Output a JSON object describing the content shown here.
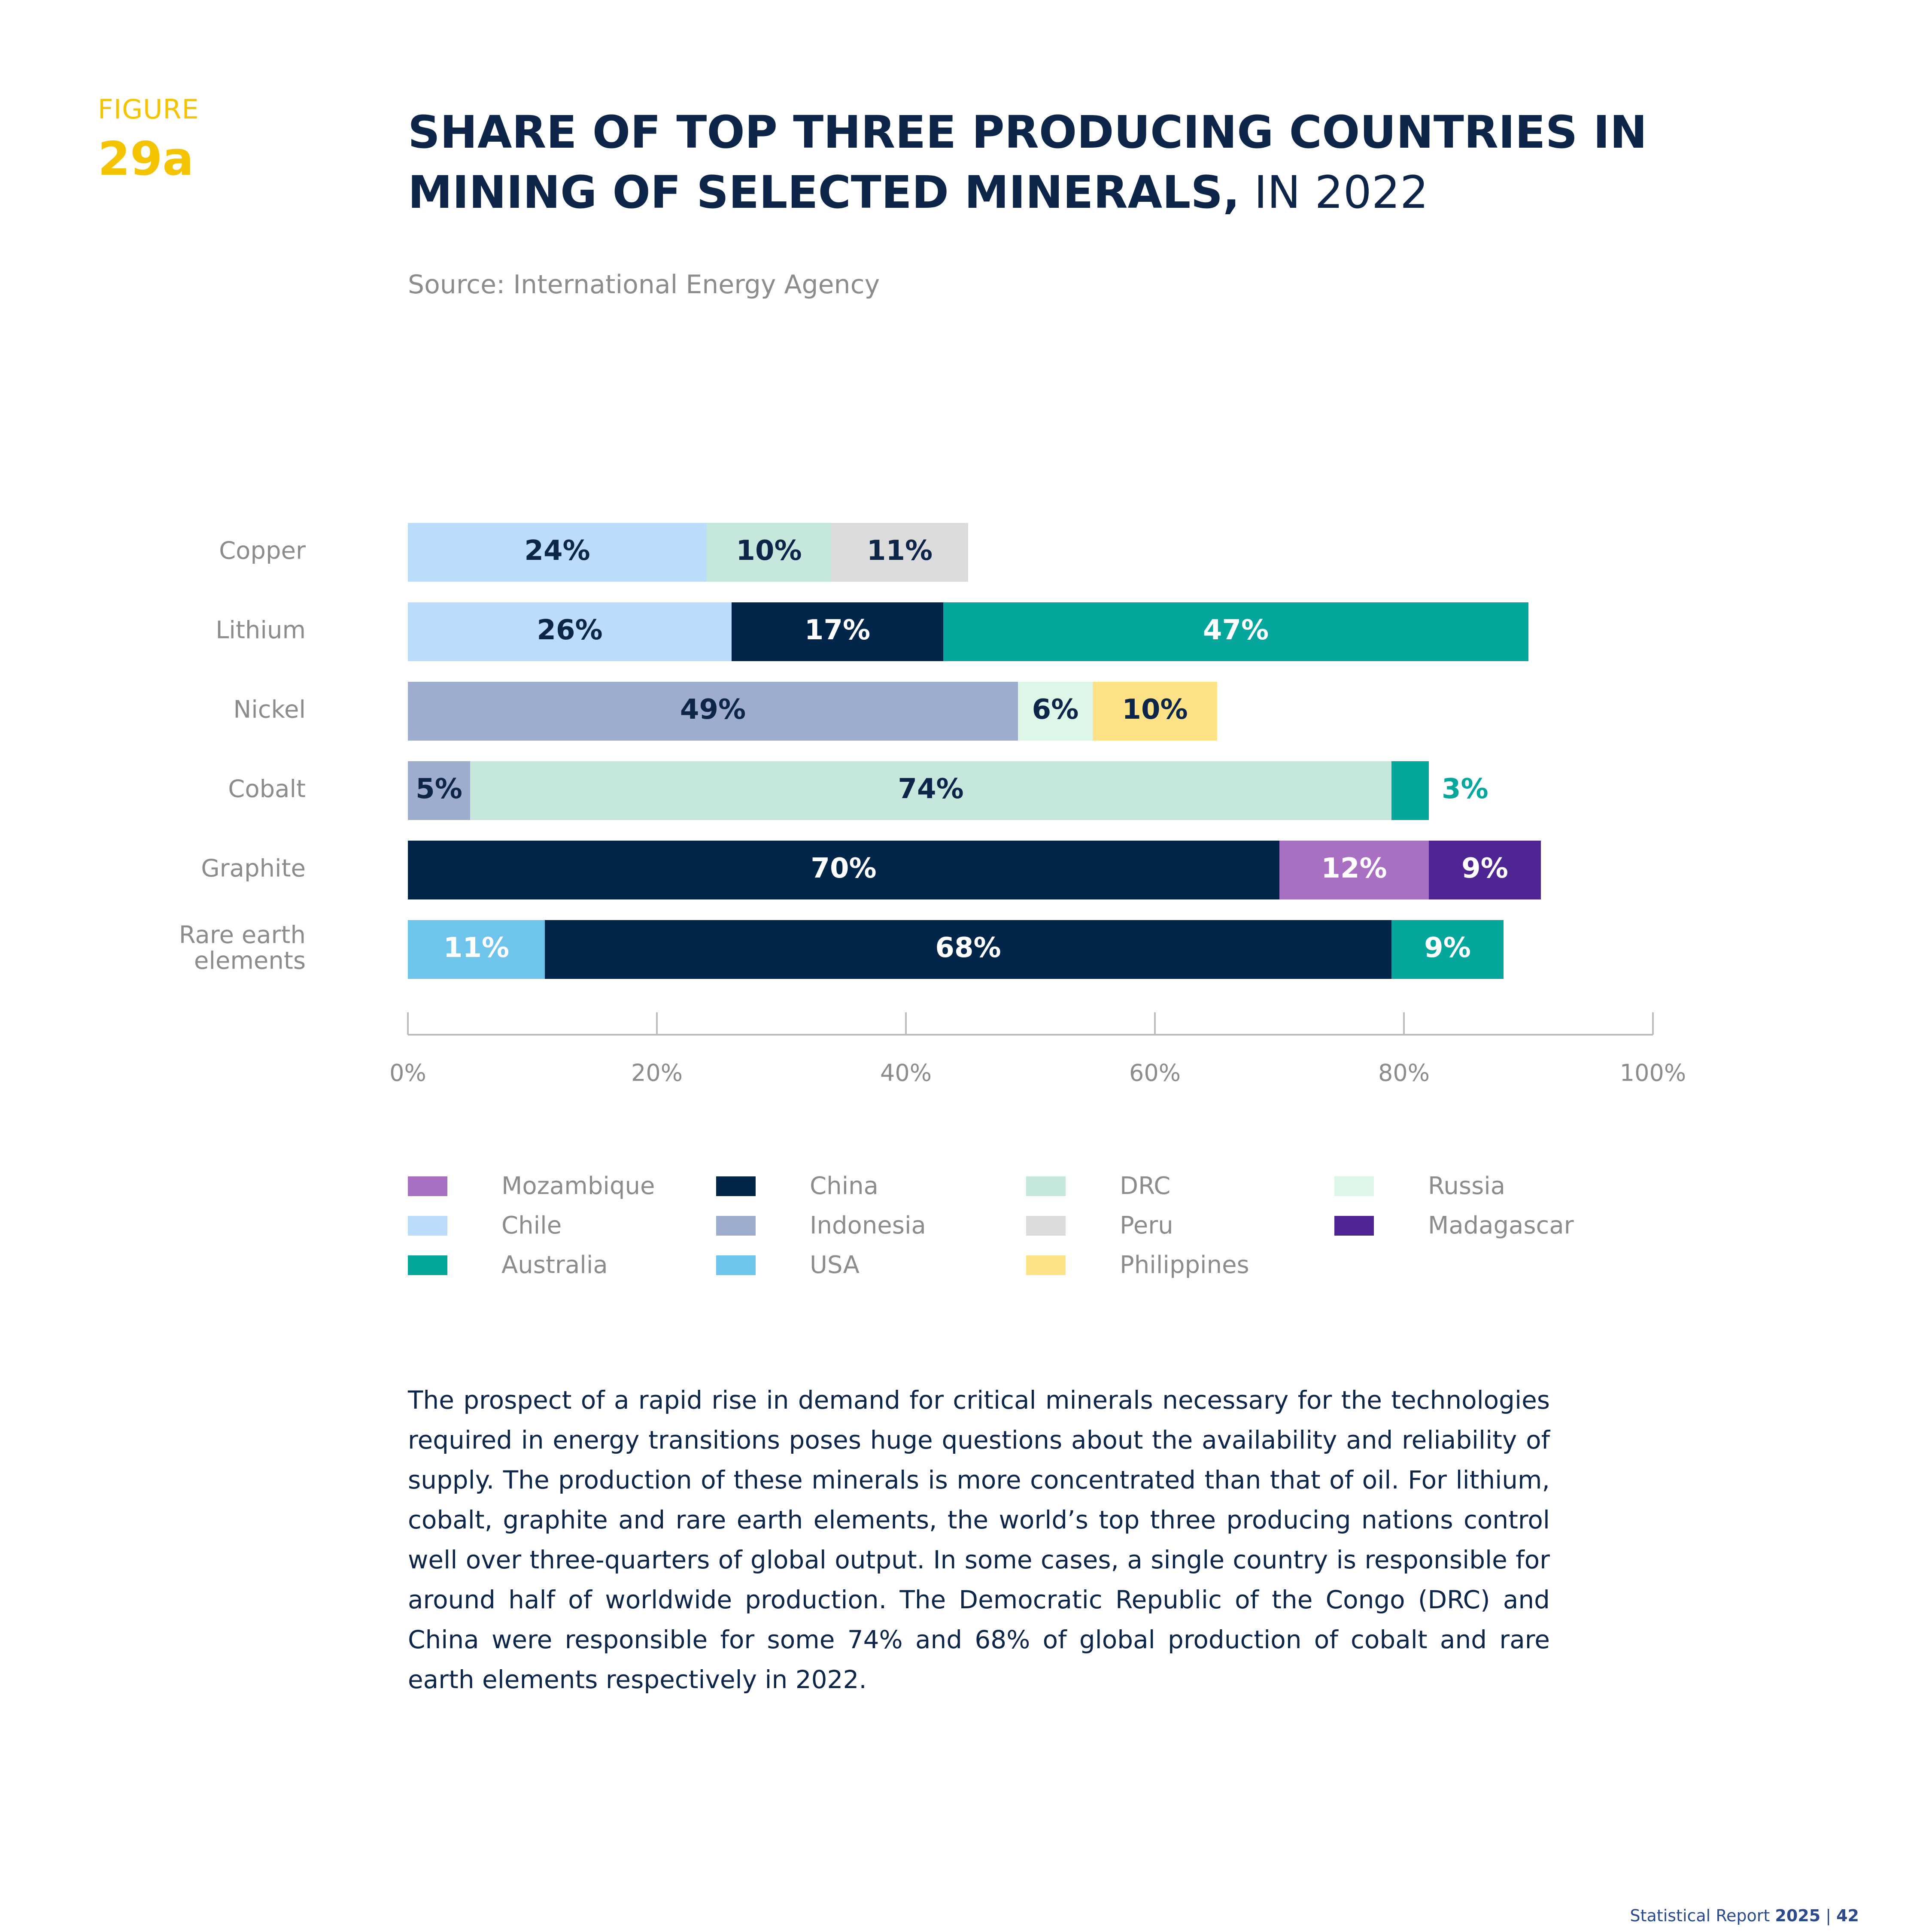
{
  "header": {
    "figure_label": "FIGURE",
    "figure_number": "29a",
    "title_bold": "SHARE OF TOP THREE PRODUCING COUNTRIES IN MINING OF SELECTED MINERALS,",
    "title_light": " IN 2022",
    "source": "Source: International Energy Agency"
  },
  "chart_data": {
    "type": "bar",
    "orientation": "horizontal",
    "stacked": true,
    "categories": [
      "Copper",
      "Lithium",
      "Nickel",
      "Cobalt",
      "Graphite",
      "Rare earth elements"
    ],
    "category_lines": [
      [
        "Copper"
      ],
      [
        "Lithium"
      ],
      [
        "Nickel"
      ],
      [
        "Cobalt"
      ],
      [
        "Graphite"
      ],
      [
        "Rare earth",
        "elements"
      ]
    ],
    "stacks": [
      [
        {
          "country": "Chile",
          "value": 24,
          "label": "24%"
        },
        {
          "country": "DRC",
          "value": 10,
          "label": "10%"
        },
        {
          "country": "Peru",
          "value": 11,
          "label": "11%"
        }
      ],
      [
        {
          "country": "Chile",
          "value": 26,
          "label": "26%"
        },
        {
          "country": "China",
          "value": 17,
          "label": "17%"
        },
        {
          "country": "Australia",
          "value": 47,
          "label": "47%"
        }
      ],
      [
        {
          "country": "Indonesia",
          "value": 49,
          "label": "49%"
        },
        {
          "country": "Russia",
          "value": 6,
          "label": "6%"
        },
        {
          "country": "Philippines",
          "value": 10,
          "label": "10%"
        }
      ],
      [
        {
          "country": "Indonesia",
          "value": 5,
          "label": "5%"
        },
        {
          "country": "DRC",
          "value": 74,
          "label": "74%"
        },
        {
          "country": "Australia",
          "value": 3,
          "label": "3%",
          "label_outside": true
        }
      ],
      [
        {
          "country": "China",
          "value": 70,
          "label": "70%"
        },
        {
          "country": "Mozambique",
          "value": 12,
          "label": "12%"
        },
        {
          "country": "Madagascar",
          "value": 9,
          "label": "9%"
        }
      ],
      [
        {
          "country": "USA",
          "value": 11,
          "label": "11%"
        },
        {
          "country": "China",
          "value": 68,
          "label": "68%"
        },
        {
          "country": "Australia",
          "value": 9,
          "label": "9%"
        }
      ]
    ],
    "xlim": [
      0,
      100
    ],
    "xticks": [
      0,
      20,
      40,
      60,
      80,
      100
    ],
    "xtick_labels": [
      "0%",
      "20%",
      "40%",
      "60%",
      "80%",
      "100%"
    ],
    "grid": false,
    "legend_position": "bottom",
    "colors": {
      "Mozambique": "#a86fc3",
      "Chile": "#bcdcfb",
      "Australia": "#05a69b",
      "China": "#02264a",
      "Indonesia": "#9eaccd",
      "USA": "#6fc4ec",
      "DRC": "#c6e7dc",
      "Peru": "#dcdcdc",
      "Philippines": "#fde288",
      "Russia": "#ddf6e8",
      "Madagascar": "#4f2493"
    },
    "label_colors": {
      "Mozambique": "#ffffff",
      "Chile": "#0d2549",
      "Australia": "#ffffff",
      "China": "#ffffff",
      "Indonesia": "#0d2549",
      "USA": "#ffffff",
      "DRC": "#0d2549",
      "Peru": "#0d2549",
      "Philippines": "#0d2549",
      "Russia": "#0d2549",
      "Madagascar": "#ffffff"
    },
    "legend": [
      "Mozambique",
      "Chile",
      "Australia",
      "China",
      "Indonesia",
      "USA",
      "DRC",
      "Peru",
      "Philippines",
      "Russia",
      "Madagascar"
    ]
  },
  "body": {
    "paragraph": "The prospect of a rapid rise in demand for critical minerals necessary for the technologies required in energy transitions poses huge questions about the availability and reliability of supply. The production of these minerals is more concentrated than that of oil. For lithium, cobalt, graphite and rare earth elements, the world’s top three producing nations control well over three-quarters of global output. In some cases, a single country is responsible for around half of worldwide production. The Democratic Republic of the Congo (DRC) and China were responsible for some 74% and 68% of global production of cobalt and rare earth elements respectively in 2022."
  },
  "footer": {
    "report": "Statistical Report ",
    "year": "2025",
    "separator": " | ",
    "page": "42"
  }
}
